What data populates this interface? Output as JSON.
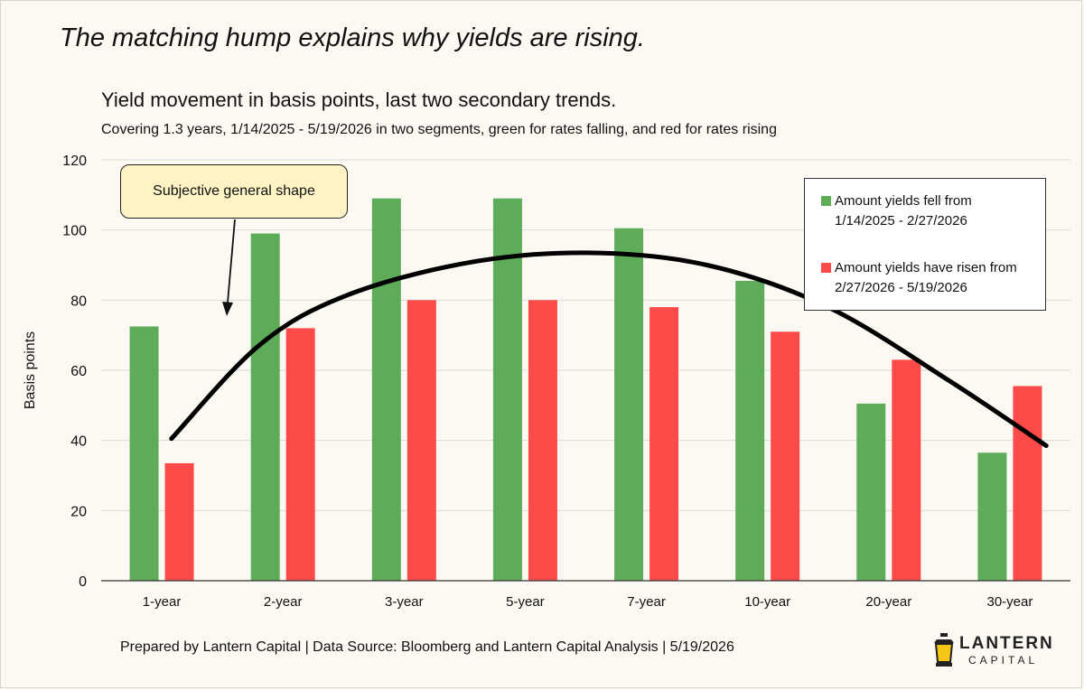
{
  "headline": "The matching hump explains why yields are rising.",
  "subtitle": "Yield movement in basis points, last two secondary trends.",
  "caption": "Covering 1.3 years,  1/14/2025 - 5/19/2026 in two segments, green for rates falling, and red for rates rising",
  "callout": "Subjective general shape",
  "footer": "Prepared by Lantern Capital | Data Source: Bloomberg and Lantern Capital Analysis | 5/19/2026",
  "logo": {
    "word1": "LANTERN",
    "word2": "CAPITAL",
    "icon": "lantern-icon"
  },
  "colors": {
    "green": "#5eac5a",
    "red": "#ff4a4a",
    "curve": "#000000",
    "grid": "#d9d9d9"
  },
  "chart_data": {
    "type": "bar",
    "categories": [
      "1-year",
      "2-year",
      "3-year",
      "5-year",
      "7-year",
      "10-year",
      "20-year",
      "30-year"
    ],
    "series": [
      {
        "name": "Amount yields fell from 1/14/2025 - 2/27/2026",
        "legend_lines": [
          "Amount yields fell from",
          "1/14/2025 - 2/27/2026"
        ],
        "color": "#5eac5a",
        "values": [
          72.5,
          99,
          109,
          109,
          100.5,
          85.5,
          50.5,
          36.5
        ]
      },
      {
        "name": "Amount yields have risen from 2/27/2026 - 5/19/2026",
        "legend_lines": [
          "Amount yields have risen from",
          "2/27/2026 - 5/19/2026"
        ],
        "color": "#ff4a4a",
        "values": [
          33.5,
          72,
          80,
          80,
          78,
          71,
          63,
          55.5
        ]
      }
    ],
    "trend_curve": {
      "label": "Subjective general shape",
      "x": [
        0.08,
        0.8,
        1.5,
        2.5,
        3.5,
        4.5,
        5.5,
        6.5,
        7.3
      ],
      "y": [
        40.5,
        67,
        81,
        90.5,
        93.5,
        90,
        78,
        57,
        38.5
      ]
    },
    "ylabel": "Basis points",
    "xlabel": "",
    "ylim": [
      0,
      120
    ],
    "yticks": [
      0,
      20,
      40,
      60,
      80,
      100,
      120
    ],
    "grid": true,
    "legend_position": "top-right"
  }
}
